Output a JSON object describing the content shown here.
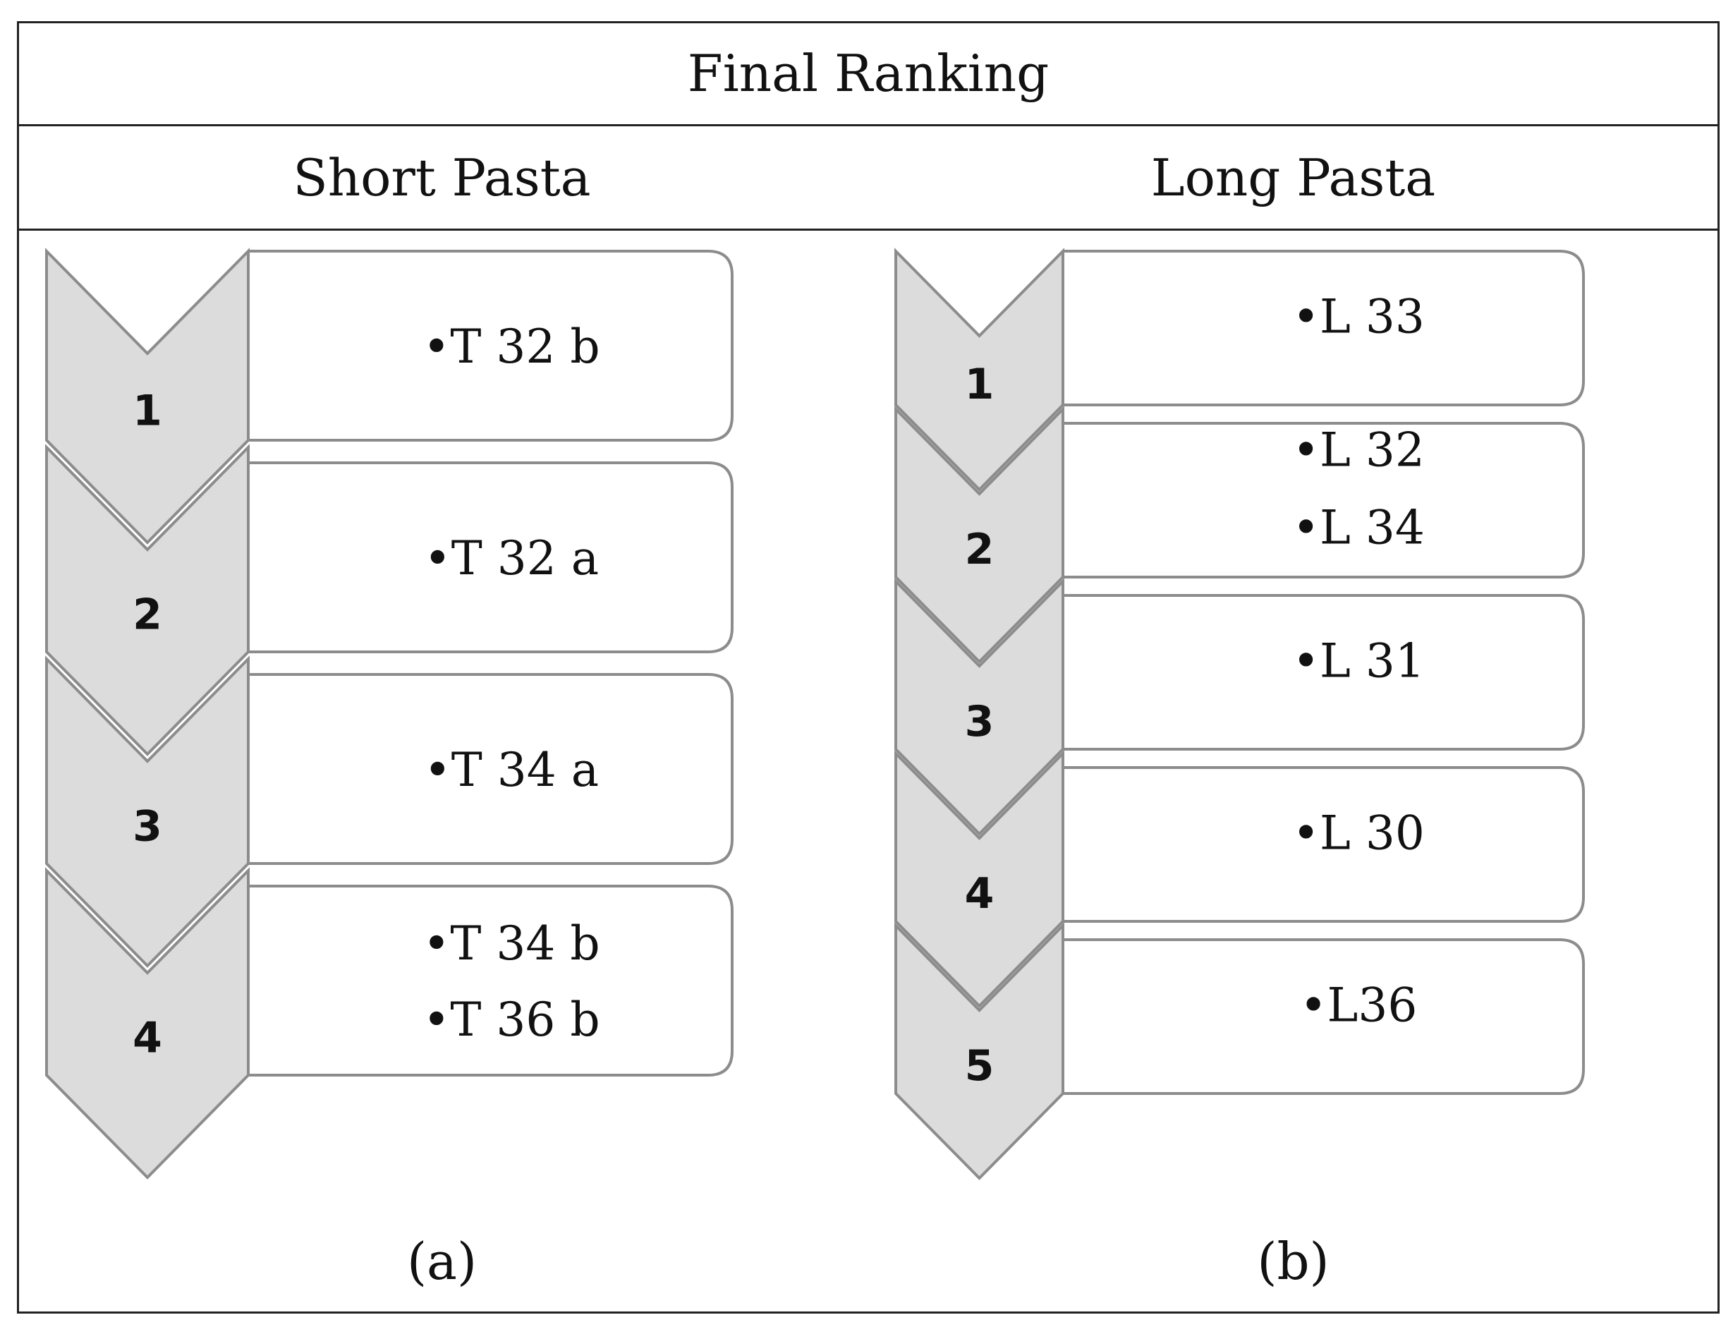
{
  "title": "Final Ranking",
  "panels": [
    {
      "heading": "Short Pasta",
      "caption": "(a)",
      "ranks": [
        {
          "rank": "1",
          "items": [
            "•T 32 b"
          ]
        },
        {
          "rank": "2",
          "items": [
            "•T 32 a"
          ]
        },
        {
          "rank": "3",
          "items": [
            "•T 34 a"
          ]
        },
        {
          "rank": "4",
          "items": [
            "•T 34 b",
            "•T 36 b"
          ]
        }
      ]
    },
    {
      "heading": "Long Pasta",
      "caption": "(b)",
      "ranks": [
        {
          "rank": "1",
          "items": [
            "•L 33"
          ]
        },
        {
          "rank": "2",
          "items": [
            "•L 32",
            "•L 34"
          ]
        },
        {
          "rank": "3",
          "items": [
            "•L 31"
          ]
        },
        {
          "rank": "4",
          "items": [
            "•L 30"
          ]
        },
        {
          "rank": "5",
          "items": [
            "•L36"
          ]
        }
      ]
    }
  ],
  "colors": {
    "chevron_fill": "#dcdcdc",
    "chevron_stroke": "#8c8c8c",
    "box_stroke": "#8c8c8c",
    "line": "#222222"
  }
}
